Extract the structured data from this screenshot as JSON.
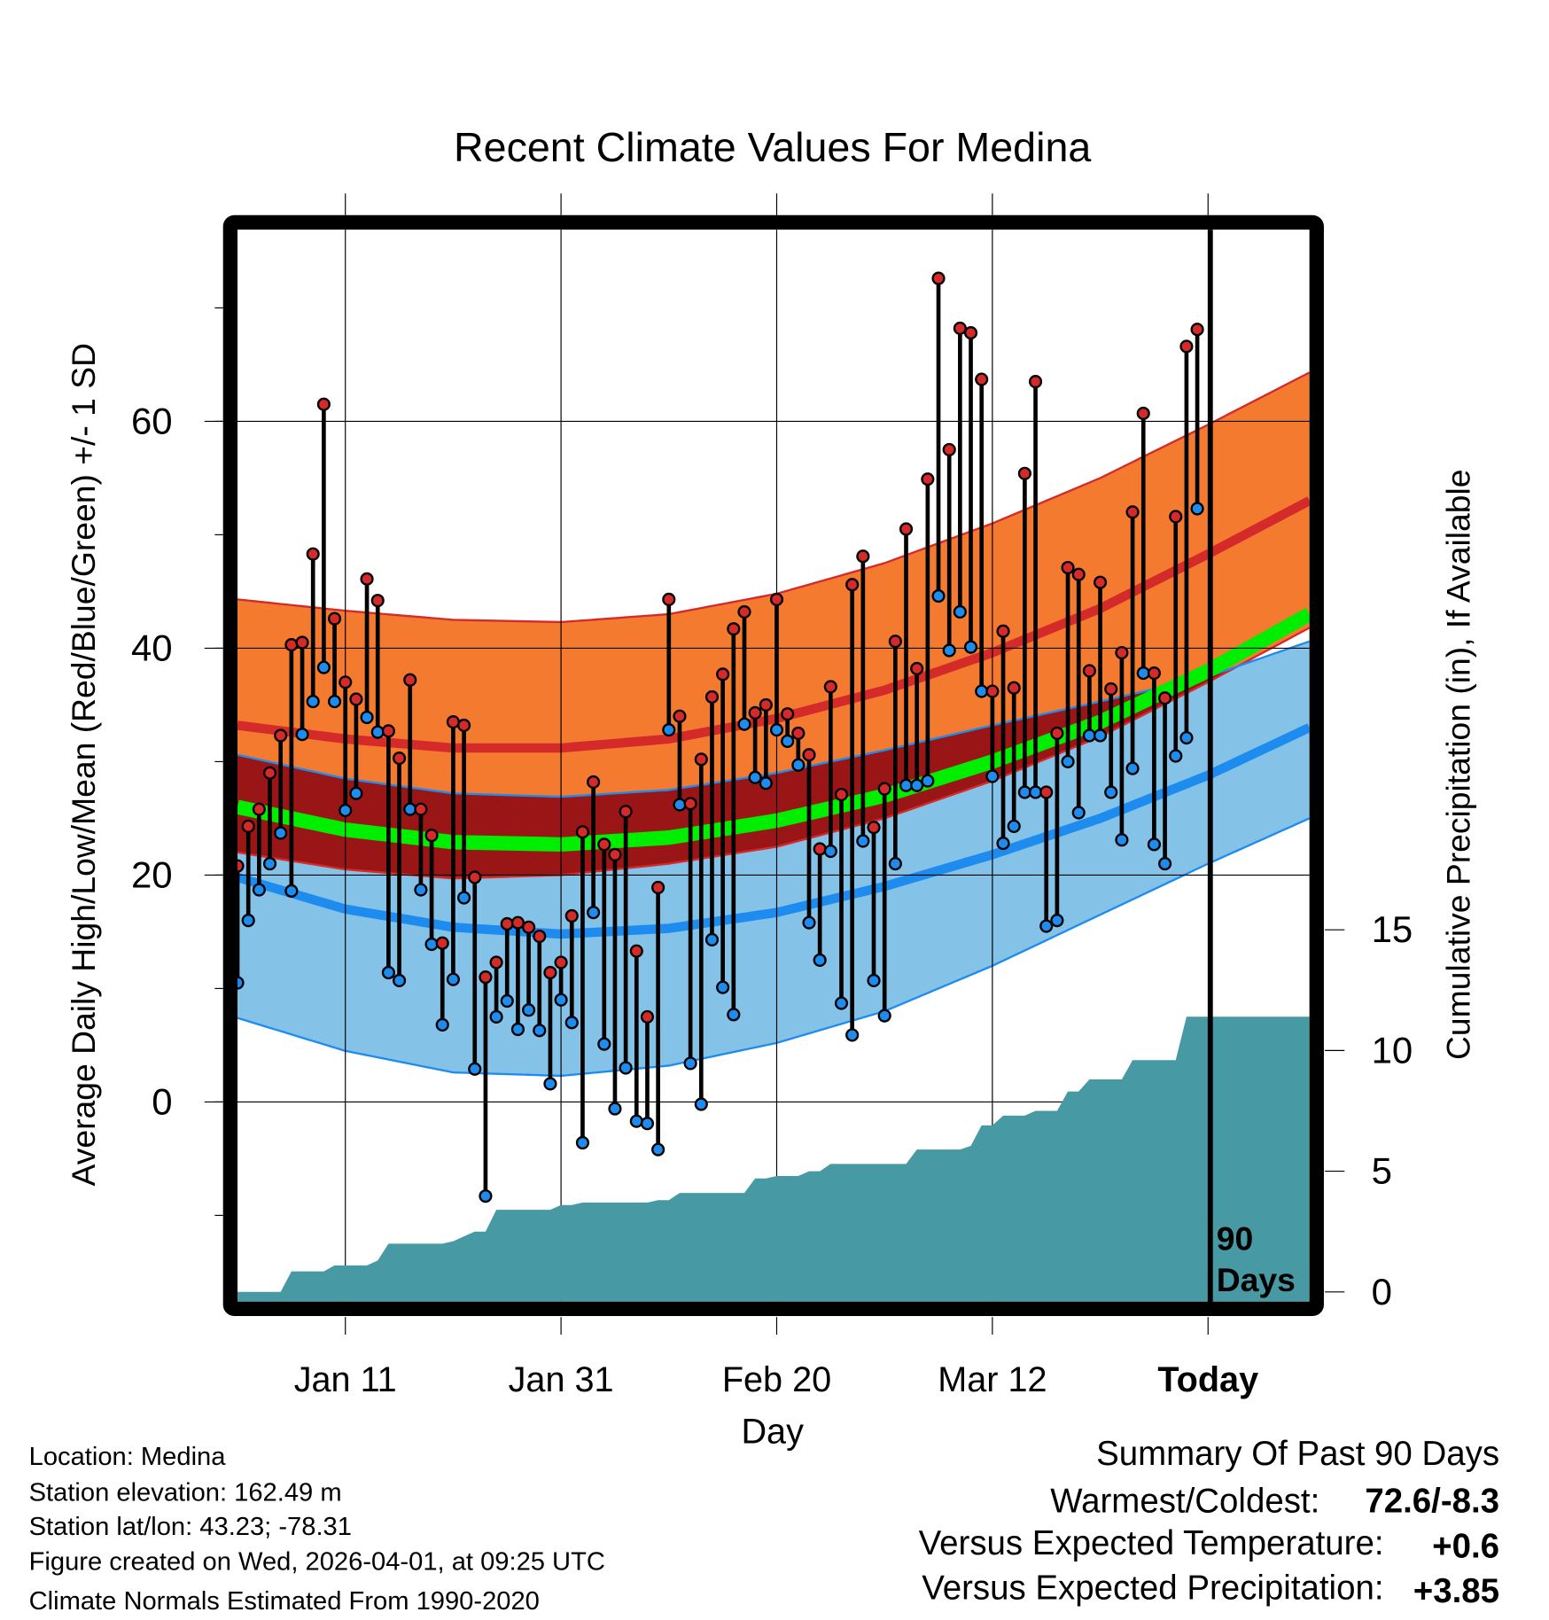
{
  "chart_data": {
    "type": "line",
    "title": "Recent Climate Values For Medina",
    "xlabel": "Day",
    "ylabel": "Average Daily High/Low/Mean (Red/Blue/Green) +/- 1 SD",
    "ylabel_right": "Cumulative Precipitation (in), If Available",
    "x_ticks": [
      "Jan 11",
      "Jan 31",
      "Feb 20",
      "Mar 12",
      "Today"
    ],
    "x_tick_days": [
      10,
      30,
      50,
      70,
      90
    ],
    "xlim_days": [
      0,
      99.4
    ],
    "y_ticks": [
      0,
      20,
      40,
      60
    ],
    "ylim": [
      -17.6,
      76.9
    ],
    "y2_ticks": [
      0,
      5,
      10,
      15
    ],
    "y2lim": [
      -0.4,
      44
    ],
    "today_label": [
      "90",
      "Days"
    ],
    "colors": {
      "high": "#d42a2a",
      "low": "#1e8cef",
      "mean": "#00ee00",
      "high_band": "#f47a30",
      "low_band": "#84c2e8",
      "overlap": "#9a1515",
      "precip": "#4799a3"
    },
    "high": [
      20.8,
      24.3,
      25.8,
      29,
      32.3,
      40.3,
      40.5,
      48.3,
      61.5,
      42.6,
      37,
      35.5,
      46.1,
      44.2,
      32.7,
      30.3,
      37.2,
      25.8,
      23.5,
      14,
      33.5,
      33.2,
      19.8,
      11,
      12.3,
      15.7,
      15.8,
      15.4,
      14.6,
      11.4,
      12.3,
      16.4,
      23.8,
      28.2,
      22.7,
      21.8,
      25.6,
      13.3,
      7.5,
      18.9,
      44.3,
      34,
      26.3,
      30.2,
      35.7,
      37.7,
      41.7,
      43.2,
      34.3,
      35,
      44.3,
      34.2,
      32.5,
      30.6,
      22.3,
      36.6,
      27.1,
      45.6,
      48.1,
      24.2,
      27.6,
      40.6,
      50.5,
      38.2,
      54.9,
      72.6,
      57.5,
      68.2,
      67.8,
      63.7,
      36.2,
      41.5,
      36.5,
      55.4,
      63.5,
      27.3,
      32.5,
      47.1,
      46.5,
      38,
      45.8,
      36.4,
      39.6,
      52,
      60.7,
      37.8,
      35.6,
      51.6,
      66.6,
      68.1
    ],
    "low": [
      10.5,
      16,
      18.7,
      21,
      23.7,
      18.6,
      32.4,
      35.3,
      38.3,
      35.3,
      25.7,
      27.2,
      33.9,
      32.6,
      11.4,
      10.7,
      25.8,
      18.7,
      13.9,
      6.8,
      10.8,
      18,
      2.9,
      -8.3,
      7.5,
      8.9,
      6.4,
      8.1,
      6.3,
      1.6,
      9,
      7,
      -3.6,
      16.7,
      5.1,
      -0.6,
      3,
      -1.7,
      -1.9,
      -4.2,
      32.8,
      26.2,
      3.4,
      -0.2,
      14.3,
      10.1,
      7.7,
      33.3,
      28.6,
      28.1,
      32.8,
      31.8,
      29.7,
      15.8,
      12.5,
      22.1,
      8.7,
      5.9,
      23,
      10.7,
      7.6,
      21,
      27.9,
      27.9,
      28.3,
      44.6,
      39.8,
      43.2,
      40.1,
      36.2,
      28.7,
      22.8,
      24.3,
      27.3,
      27.3,
      15.5,
      16,
      30,
      25.5,
      32.3,
      32.3,
      27.3,
      23.1,
      29.4,
      37.8,
      22.7,
      21,
      30.5,
      32.1,
      52.3
    ],
    "normals": {
      "days": [
        0,
        10,
        20,
        30,
        40,
        50,
        60,
        70,
        80,
        90,
        99.4
      ],
      "high_mean": [
        33.2,
        32,
        31.2,
        31.2,
        32,
        33.8,
        36.3,
        39.6,
        43.5,
        48.3,
        53
      ],
      "high_plus_sd": [
        44.3,
        43.3,
        42.5,
        42.3,
        43,
        44.8,
        47.5,
        51,
        55,
        59.7,
        64.3
      ],
      "high_minus_sd": [
        22,
        20.5,
        19.7,
        20,
        21,
        22.5,
        25,
        28.3,
        32.2,
        37,
        41.8
      ],
      "mean": [
        26,
        24,
        22.9,
        22.7,
        23.3,
        24.8,
        27,
        30,
        33.5,
        38,
        43
      ],
      "low_mean": [
        19.8,
        17,
        15.4,
        14.8,
        15.3,
        16.7,
        19,
        21.8,
        25,
        28.8,
        33
      ],
      "low_plus_sd": [
        30.6,
        28.5,
        27.2,
        26.9,
        27.5,
        29,
        31,
        33.2,
        35.3,
        37.5,
        40.6
      ],
      "low_minus_sd": [
        7.4,
        4.5,
        2.6,
        2.3,
        3.2,
        5.2,
        8,
        12,
        16.5,
        21,
        25
      ]
    },
    "precip_cumulative": [
      0,
      0,
      0,
      0,
      0,
      0.85,
      0.85,
      0.85,
      0.85,
      1.1,
      1.1,
      1.1,
      1.1,
      1.3,
      2.0,
      2.0,
      2.0,
      2.0,
      2.0,
      2.0,
      2.1,
      2.3,
      2.5,
      2.5,
      3.4,
      3.4,
      3.4,
      3.4,
      3.4,
      3.4,
      3.6,
      3.6,
      3.7,
      3.7,
      3.7,
      3.7,
      3.7,
      3.7,
      3.7,
      3.8,
      3.8,
      4.1,
      4.1,
      4.1,
      4.1,
      4.1,
      4.1,
      4.1,
      4.7,
      4.7,
      4.8,
      4.8,
      4.8,
      5.0,
      5.0,
      5.3,
      5.3,
      5.3,
      5.3,
      5.3,
      5.3,
      5.3,
      5.3,
      5.9,
      5.9,
      5.9,
      5.9,
      5.9,
      6.05,
      6.9,
      6.9,
      7.3,
      7.3,
      7.3,
      7.5,
      7.5,
      7.5,
      8.3,
      8.3,
      8.8,
      8.8,
      8.8,
      8.8,
      9.6,
      9.6,
      9.6,
      9.6,
      9.6,
      11.4,
      11.4
    ]
  },
  "footer": {
    "location": "Location: Medina",
    "elevation": "Station elevation: 162.49 m",
    "latlon": "Station lat/lon: 43.23; -78.31",
    "created": "Figure created on Wed, 2026-04-01, at 09:25 UTC",
    "normals": "Climate Normals Estimated From 1990-2020"
  },
  "summary": {
    "title": "Summary Of Past 90 Days",
    "warmest_label": "Warmest/Coldest:",
    "warmest_value": "72.6/-8.3",
    "temp_label": "Versus Expected Temperature:",
    "temp_value": "+0.6",
    "precip_label": "Versus Expected Precipitation:",
    "precip_value": "+3.85"
  }
}
